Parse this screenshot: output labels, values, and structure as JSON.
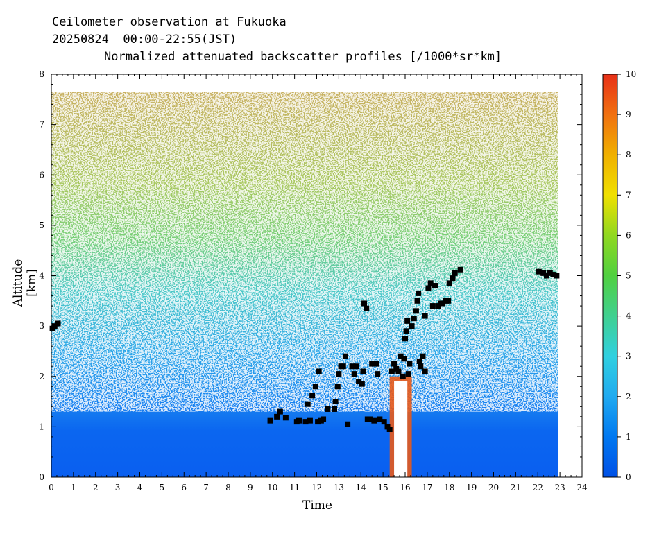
{
  "header": {
    "line1": "Ceilometer observation at Fukuoka",
    "line2": "20250824  00:00-22:55(JST)",
    "line3": "Normalized attenuated backscatter profiles [/1000*sr*km]"
  },
  "chart_data": {
    "type": "heatmap",
    "xlabel": "Time",
    "ylabel": "Altitude [km]",
    "xlim": [
      0,
      24
    ],
    "ylim": [
      0,
      8
    ],
    "x_ticks": [
      "0",
      "1",
      "2",
      "3",
      "4",
      "5",
      "6",
      "7",
      "8",
      "9",
      "10",
      "11",
      "12",
      "13",
      "14",
      "15",
      "16",
      "17",
      "18",
      "19",
      "20",
      "21",
      "22",
      "23",
      "24"
    ],
    "y_ticks": [
      "0",
      "1",
      "2",
      "3",
      "4",
      "5",
      "6",
      "7",
      "8"
    ],
    "data_end_time": 22.92,
    "data_top_altitude": 7.65,
    "colorbar": {
      "min": 0,
      "max": 10,
      "ticks": [
        "0",
        "1",
        "2",
        "3",
        "4",
        "5",
        "6",
        "7",
        "8",
        "9",
        "10"
      ],
      "colors": [
        "#0050e6",
        "#0078f0",
        "#20aaf0",
        "#30d0e0",
        "#40d090",
        "#50d040",
        "#90d820",
        "#f0e000",
        "#f0b000",
        "#f07010",
        "#e83018"
      ]
    },
    "backscatter_profile": {
      "description_altitudes": [
        0,
        0.5,
        1,
        1.5,
        2,
        3,
        4,
        5,
        6,
        7
      ],
      "typical_values": [
        1.0,
        1.0,
        1.2,
        1.5,
        1.8,
        2.5,
        3.5,
        5.0,
        6.5,
        7.5
      ]
    },
    "precipitation_shaft": {
      "time_start": 15.3,
      "time_end": 16.3,
      "altitude_top": 2.0
    },
    "cloud_base_points": [
      {
        "x": 0.05,
        "y": 2.95
      },
      {
        "x": 0.15,
        "y": 3.0
      },
      {
        "x": 0.3,
        "y": 3.05
      },
      {
        "x": 9.9,
        "y": 1.12
      },
      {
        "x": 10.2,
        "y": 1.2
      },
      {
        "x": 10.35,
        "y": 1.3
      },
      {
        "x": 10.6,
        "y": 1.18
      },
      {
        "x": 11.1,
        "y": 1.1
      },
      {
        "x": 11.2,
        "y": 1.12
      },
      {
        "x": 11.5,
        "y": 1.1
      },
      {
        "x": 11.7,
        "y": 1.12
      },
      {
        "x": 11.6,
        "y": 1.45
      },
      {
        "x": 11.8,
        "y": 1.62
      },
      {
        "x": 11.95,
        "y": 1.8
      },
      {
        "x": 12.05,
        "y": 1.1
      },
      {
        "x": 12.2,
        "y": 1.12
      },
      {
        "x": 12.3,
        "y": 1.15
      },
      {
        "x": 12.1,
        "y": 2.1
      },
      {
        "x": 12.5,
        "y": 1.35
      },
      {
        "x": 12.8,
        "y": 1.35
      },
      {
        "x": 12.85,
        "y": 1.5
      },
      {
        "x": 12.95,
        "y": 1.8
      },
      {
        "x": 13.0,
        "y": 2.05
      },
      {
        "x": 13.1,
        "y": 2.2
      },
      {
        "x": 13.3,
        "y": 2.4
      },
      {
        "x": 13.2,
        "y": 2.2
      },
      {
        "x": 13.4,
        "y": 1.05
      },
      {
        "x": 13.6,
        "y": 2.2
      },
      {
        "x": 13.7,
        "y": 2.05
      },
      {
        "x": 13.8,
        "y": 2.2
      },
      {
        "x": 13.9,
        "y": 1.9
      },
      {
        "x": 14.05,
        "y": 1.85
      },
      {
        "x": 14.1,
        "y": 2.1
      },
      {
        "x": 14.15,
        "y": 3.45
      },
      {
        "x": 14.25,
        "y": 3.35
      },
      {
        "x": 14.3,
        "y": 1.15
      },
      {
        "x": 14.4,
        "y": 1.15
      },
      {
        "x": 14.5,
        "y": 2.25
      },
      {
        "x": 14.6,
        "y": 1.12
      },
      {
        "x": 14.7,
        "y": 2.25
      },
      {
        "x": 14.75,
        "y": 2.05
      },
      {
        "x": 14.85,
        "y": 1.15
      },
      {
        "x": 15.05,
        "y": 1.1
      },
      {
        "x": 15.2,
        "y": 1.0
      },
      {
        "x": 15.3,
        "y": 0.95
      },
      {
        "x": 15.4,
        "y": 2.1
      },
      {
        "x": 15.5,
        "y": 2.25
      },
      {
        "x": 15.6,
        "y": 2.15
      },
      {
        "x": 15.7,
        "y": 2.1
      },
      {
        "x": 15.8,
        "y": 2.4
      },
      {
        "x": 15.9,
        "y": 2.0
      },
      {
        "x": 15.95,
        "y": 2.35
      },
      {
        "x": 16.0,
        "y": 2.75
      },
      {
        "x": 16.05,
        "y": 2.9
      },
      {
        "x": 16.1,
        "y": 3.1
      },
      {
        "x": 16.15,
        "y": 2.05
      },
      {
        "x": 16.2,
        "y": 2.25
      },
      {
        "x": 16.3,
        "y": 3.0
      },
      {
        "x": 16.4,
        "y": 3.15
      },
      {
        "x": 16.5,
        "y": 3.3
      },
      {
        "x": 16.55,
        "y": 3.5
      },
      {
        "x": 16.6,
        "y": 3.65
      },
      {
        "x": 16.65,
        "y": 2.3
      },
      {
        "x": 16.7,
        "y": 2.2
      },
      {
        "x": 16.8,
        "y": 2.4
      },
      {
        "x": 16.9,
        "y": 2.1
      },
      {
        "x": 16.9,
        "y": 3.2
      },
      {
        "x": 17.05,
        "y": 3.75
      },
      {
        "x": 17.15,
        "y": 3.85
      },
      {
        "x": 17.25,
        "y": 3.4
      },
      {
        "x": 17.35,
        "y": 3.8
      },
      {
        "x": 17.5,
        "y": 3.4
      },
      {
        "x": 17.6,
        "y": 3.45
      },
      {
        "x": 17.7,
        "y": 3.45
      },
      {
        "x": 17.85,
        "y": 3.5
      },
      {
        "x": 17.95,
        "y": 3.5
      },
      {
        "x": 18.0,
        "y": 3.85
      },
      {
        "x": 18.15,
        "y": 3.95
      },
      {
        "x": 18.25,
        "y": 4.05
      },
      {
        "x": 18.5,
        "y": 4.12
      },
      {
        "x": 22.05,
        "y": 4.08
      },
      {
        "x": 22.25,
        "y": 4.05
      },
      {
        "x": 22.4,
        "y": 4.0
      },
      {
        "x": 22.55,
        "y": 4.05
      },
      {
        "x": 22.7,
        "y": 4.02
      },
      {
        "x": 22.85,
        "y": 4.0
      }
    ]
  }
}
